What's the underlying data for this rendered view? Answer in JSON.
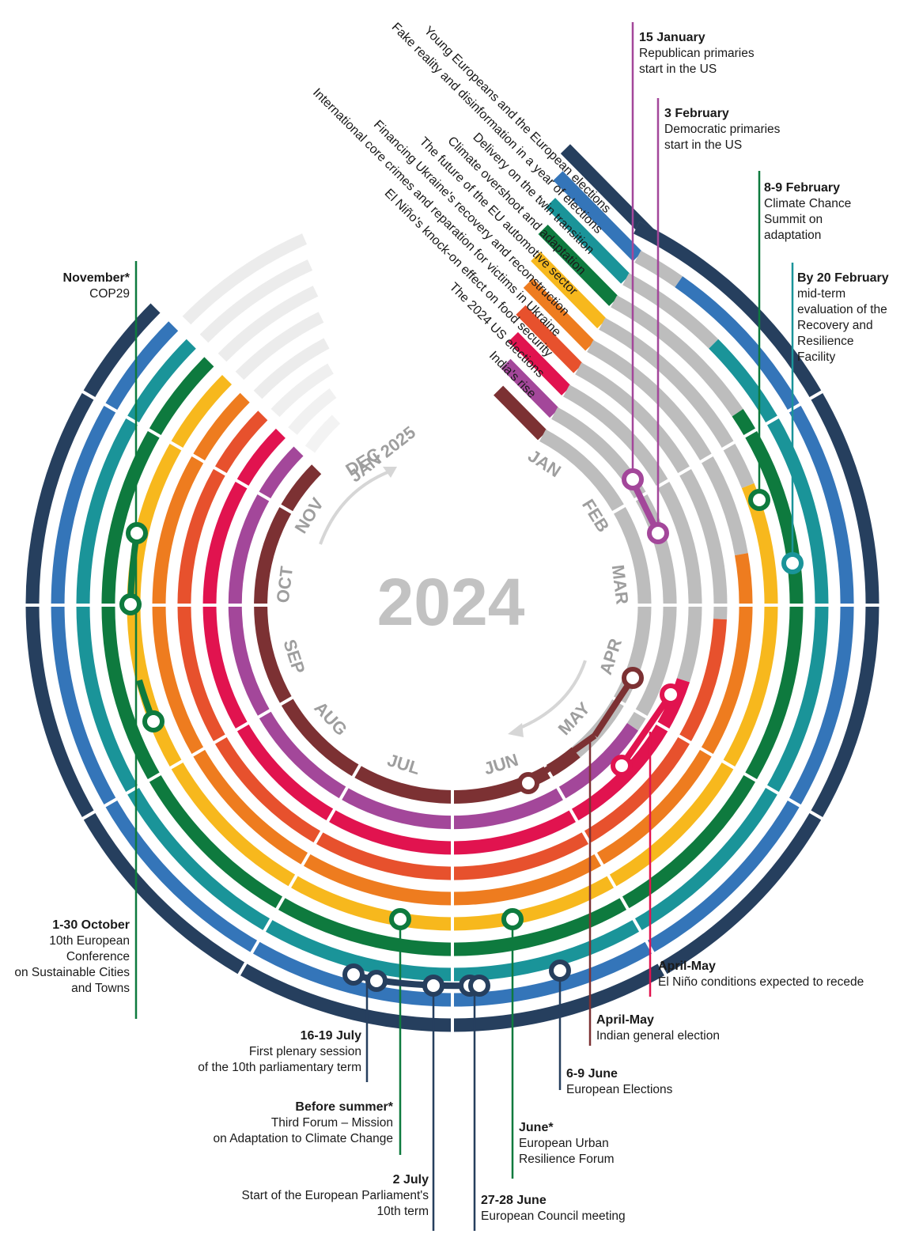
{
  "year": "2024",
  "next_year": "JAN 2025",
  "colors": {
    "navy": "#263f5e",
    "blue": "#3475b9",
    "teal": "#1a9499",
    "green": "#0e7a3e",
    "yellow": "#f7b81d",
    "orange": "#ee7c1f",
    "red_orange": "#e7512d",
    "crimson": "#e1134f",
    "purple": "#a3479a",
    "maroon": "#7c3133",
    "gray": "#bdbdbd"
  },
  "months": [
    "JAN",
    "FEB",
    "MAR",
    "APR",
    "MAY",
    "JUN",
    "JUL",
    "AUG",
    "SEP",
    "OCT",
    "NOV",
    "DEC"
  ],
  "tracks": [
    {
      "name": "Young Europeans and the European elections",
      "color": "#263f5e"
    },
    {
      "name": "Fake reality and disinformation in a year of elections",
      "color": "#3475b9"
    },
    {
      "name": "Delivery on the twin transition",
      "color": "#1a9499"
    },
    {
      "name": "Climate overshoot and adaptation",
      "color": "#0e7a3e"
    },
    {
      "name": "The future of the EU automotive sector",
      "color": "#f7b81d"
    },
    {
      "name": "Financing Ukraine's recovery and reconstruction",
      "color": "#ee7c1f"
    },
    {
      "name": "International core crimes and reparation for victims in Ukraine",
      "color": "#e7512d"
    },
    {
      "name": "El Niño's knock-on effect on food security",
      "color": "#e1134f"
    },
    {
      "name": "The 2024 US elections",
      "color": "#a3479a"
    },
    {
      "name": "India's rise",
      "color": "#7c3133"
    }
  ],
  "events": [
    {
      "date": "15 January",
      "text": "Republican primaries\nstart in the US",
      "color": "#a3479a"
    },
    {
      "date": "3 February",
      "text": "Democratic primaries\nstart in the US",
      "color": "#a3479a"
    },
    {
      "date": "8-9 February",
      "text": "Climate Chance\nSummit on\nadaptation",
      "color": "#0e7a3e"
    },
    {
      "date": "By 20 February",
      "text": "mid-term\nevaluation of the\nRecovery and\nResilience\nFacility",
      "color": "#1a9499"
    },
    {
      "date": "November*",
      "text": "COP29",
      "color": "#0e7a3e"
    },
    {
      "date": "1-30 October",
      "text": "10th European\nConference\non Sustainable Cities\nand Towns",
      "color": "#0e7a3e"
    },
    {
      "date": "April-May",
      "text": "El Niño conditions expected to recede",
      "color": "#e1134f"
    },
    {
      "date": "April-May",
      "text": "Indian general election",
      "color": "#7c3133"
    },
    {
      "date": "6-9 June",
      "text": "European Elections",
      "color": "#263f5e"
    },
    {
      "date": "16-19 July",
      "text": "First plenary session\nof the 10th parliamentary term",
      "color": "#263f5e"
    },
    {
      "date": "Before summer*",
      "text": "Third Forum – Mission\non Adaptation to Climate Change",
      "color": "#0e7a3e"
    },
    {
      "date": "June*",
      "text": "European Urban\nResilience Forum",
      "color": "#0e7a3e"
    },
    {
      "date": "2 July",
      "text": "Start of the European Parliament's\n10th term",
      "color": "#263f5e"
    },
    {
      "date": "27-28 June",
      "text": "European Council meeting",
      "color": "#263f5e"
    }
  ]
}
